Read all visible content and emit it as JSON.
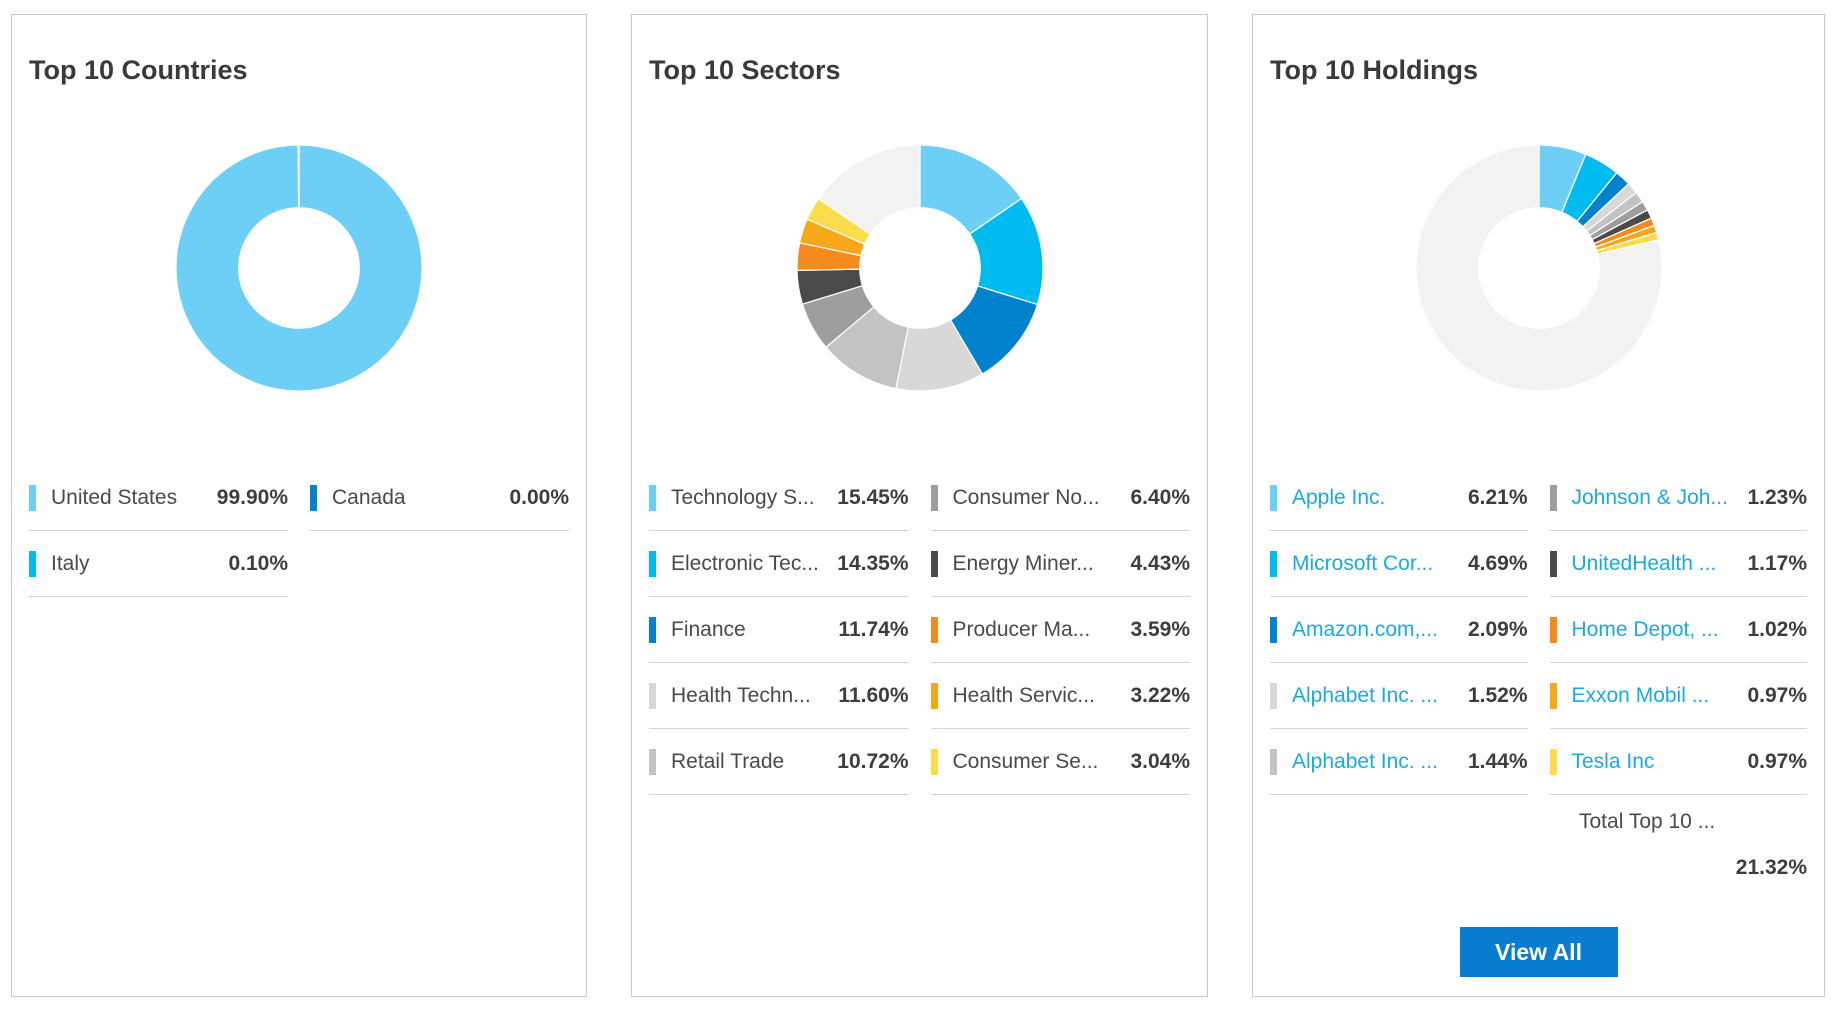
{
  "colors": {
    "palette": [
      "#6dcff6",
      "#00bbef",
      "#0281cc",
      "#d8d8d8",
      "#c3c3c3",
      "#9e9e9e",
      "#4a4a4a",
      "#f58b1f",
      "#f6a81a",
      "#fddc4b"
    ],
    "remainder": "#f2f2f2",
    "link": "#1aaae3",
    "button": "#0a7ccf"
  },
  "panels": [
    {
      "title": "Top 10 Countries",
      "links": false,
      "chart_data": {
        "type": "pie",
        "title": "Top 10 Countries",
        "categories": [
          "United States",
          "Canada",
          "Italy"
        ],
        "values": [
          99.9,
          0.0,
          0.1
        ],
        "color_index": [
          0,
          2,
          1
        ]
      },
      "legend": [
        {
          "label": "United States",
          "value": "99.90%",
          "color_index": 0
        },
        {
          "label": "Canada",
          "value": "0.00%",
          "color_index": 2
        },
        {
          "label": "Italy",
          "value": "0.10%",
          "color_index": 1
        }
      ]
    },
    {
      "title": "Top 10 Sectors",
      "links": false,
      "chart_data": {
        "type": "pie",
        "title": "Top 10 Sectors",
        "categories": [
          "Technology Services",
          "Electronic Technology",
          "Finance",
          "Health Technology",
          "Retail Trade",
          "Consumer Non-Durables",
          "Energy Minerals",
          "Producer Manufacturing",
          "Health Services",
          "Consumer Services"
        ],
        "values": [
          15.45,
          14.35,
          11.74,
          11.6,
          10.72,
          6.4,
          4.43,
          3.59,
          3.22,
          3.04
        ],
        "color_index": [
          0,
          1,
          2,
          3,
          4,
          5,
          6,
          7,
          8,
          9
        ],
        "remainder": 15.46
      },
      "legend": [
        {
          "label": "Technology S...",
          "value": "15.45%",
          "color_index": 0
        },
        {
          "label": "Consumer No...",
          "value": "6.40%",
          "color_index": 5
        },
        {
          "label": "Electronic Tec...",
          "value": "14.35%",
          "color_index": 1
        },
        {
          "label": "Energy Miner...",
          "value": "4.43%",
          "color_index": 6
        },
        {
          "label": "Finance",
          "value": "11.74%",
          "color_index": 2
        },
        {
          "label": "Producer Ma...",
          "value": "3.59%",
          "color_index": 7
        },
        {
          "label": "Health Techn...",
          "value": "11.60%",
          "color_index": 3
        },
        {
          "label": "Health Servic...",
          "value": "3.22%",
          "color_index": 8
        },
        {
          "label": "Retail Trade",
          "value": "10.72%",
          "color_index": 4
        },
        {
          "label": "Consumer Se...",
          "value": "3.04%",
          "color_index": 9
        }
      ]
    },
    {
      "title": "Top 10 Holdings",
      "links": true,
      "chart_data": {
        "type": "pie",
        "title": "Top 10 Holdings",
        "categories": [
          "Apple Inc.",
          "Microsoft Corporation",
          "Amazon.com, Inc.",
          "Alphabet Inc. Class A",
          "Alphabet Inc. Class C",
          "Johnson & Johnson",
          "UnitedHealth Group",
          "Home Depot, Inc.",
          "Exxon Mobil Corporation",
          "Tesla Inc"
        ],
        "values": [
          6.21,
          4.69,
          2.09,
          1.52,
          1.44,
          1.23,
          1.17,
          1.02,
          0.97,
          0.97
        ],
        "color_index": [
          0,
          1,
          2,
          3,
          4,
          5,
          6,
          7,
          8,
          9
        ],
        "remainder": 78.68
      },
      "legend": [
        {
          "label": "Apple Inc.",
          "value": "6.21%",
          "color_index": 0
        },
        {
          "label": "Johnson & Joh...",
          "value": "1.23%",
          "color_index": 5
        },
        {
          "label": "Microsoft Cor...",
          "value": "4.69%",
          "color_index": 1
        },
        {
          "label": "UnitedHealth ...",
          "value": "1.17%",
          "color_index": 6
        },
        {
          "label": "Amazon.com,...",
          "value": "2.09%",
          "color_index": 2
        },
        {
          "label": "Home Depot, ...",
          "value": "1.02%",
          "color_index": 7
        },
        {
          "label": "Alphabet Inc. ...",
          "value": "1.52%",
          "color_index": 3
        },
        {
          "label": "Exxon Mobil ...",
          "value": "0.97%",
          "color_index": 8
        },
        {
          "label": "Alphabet Inc. ...",
          "value": "1.44%",
          "color_index": 4
        },
        {
          "label": "Tesla Inc",
          "value": "0.97%",
          "color_index": 9
        }
      ],
      "total": {
        "label": "Total Top 10 ...",
        "value": "21.32%"
      },
      "button": "View All"
    }
  ]
}
